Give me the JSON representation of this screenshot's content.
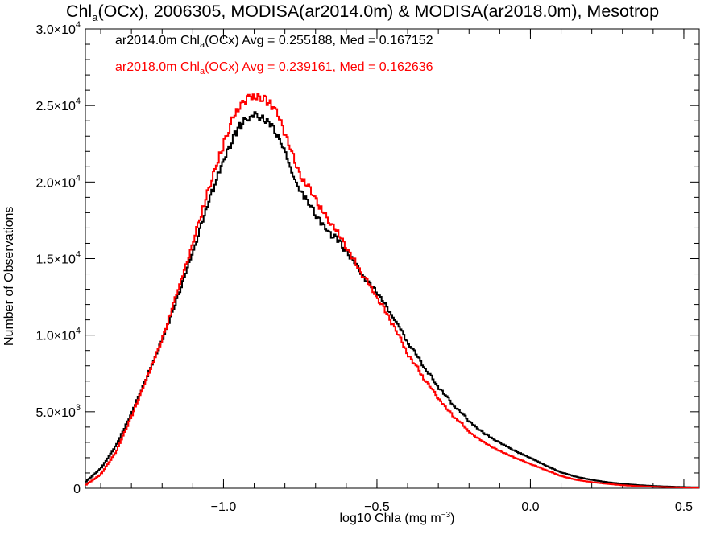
{
  "chart_data": {
    "type": "line",
    "title": {
      "prefix": "Chl",
      "sub": "a",
      "rest": "(OCx), 2006305, MODISA(ar2014.0m) & MODISA(ar2018.0m), Mesotrop"
    },
    "xlabel": {
      "text": "log10 Chla (mg m",
      "sup": "−3",
      "close": ")"
    },
    "ylabel": "Number of Observations",
    "xlim": [
      -1.45,
      0.55
    ],
    "ylim": [
      0,
      30000
    ],
    "x_ticks": [
      {
        "value": -1.0,
        "label": "−1.0"
      },
      {
        "value": -0.5,
        "label": "−0.5"
      },
      {
        "value": 0.0,
        "label": "0.0"
      },
      {
        "value": 0.5,
        "label": "0.5"
      }
    ],
    "y_ticks": [
      {
        "value": 0,
        "mant": "0",
        "exp": ""
      },
      {
        "value": 5000,
        "mant": "5.0×10",
        "exp": "3"
      },
      {
        "value": 10000,
        "mant": "1.0×10",
        "exp": "4"
      },
      {
        "value": 15000,
        "mant": "1.5×10",
        "exp": "4"
      },
      {
        "value": 20000,
        "mant": "2.0×10",
        "exp": "4"
      },
      {
        "value": 25000,
        "mant": "2.5×10",
        "exp": "4"
      },
      {
        "value": 30000,
        "mant": "3.0×10",
        "exp": "4"
      }
    ],
    "series": [
      {
        "label": {
          "pre": "ar2014.0m Chl",
          "sub": "a",
          "post": "(OCx) Avg = 0.255188, Med = 0.167152"
        },
        "color": "#000000",
        "x": [
          -1.45,
          -1.4,
          -1.35,
          -1.3,
          -1.25,
          -1.2,
          -1.15,
          -1.1,
          -1.05,
          -1.0,
          -0.97,
          -0.94,
          -0.91,
          -0.89,
          -0.87,
          -0.85,
          -0.83,
          -0.81,
          -0.79,
          -0.77,
          -0.75,
          -0.72,
          -0.7,
          -0.68,
          -0.65,
          -0.62,
          -0.6,
          -0.57,
          -0.55,
          -0.52,
          -0.5,
          -0.47,
          -0.45,
          -0.42,
          -0.4,
          -0.37,
          -0.35,
          -0.32,
          -0.3,
          -0.27,
          -0.25,
          -0.22,
          -0.2,
          -0.15,
          -0.1,
          -0.05,
          0.0,
          0.05,
          0.1,
          0.15,
          0.2,
          0.25,
          0.3,
          0.35,
          0.4,
          0.45,
          0.5,
          0.55
        ],
        "y": [
          400,
          1300,
          2800,
          4900,
          7300,
          9700,
          12500,
          15500,
          18700,
          21500,
          23000,
          24000,
          24400,
          24500,
          24200,
          23900,
          23400,
          22600,
          21500,
          20400,
          19500,
          18700,
          18000,
          17400,
          16700,
          16200,
          15500,
          14800,
          14000,
          13400,
          12800,
          12000,
          11300,
          10400,
          9500,
          8800,
          8000,
          7300,
          6600,
          6000,
          5400,
          4900,
          4400,
          3600,
          3000,
          2450,
          2000,
          1500,
          1050,
          750,
          550,
          400,
          290,
          210,
          150,
          110,
          80,
          60
        ]
      },
      {
        "label": {
          "pre": "ar2018.0m Chl",
          "sub": "a",
          "post": "(OCx) Avg = 0.239161, Med = 0.162636"
        },
        "color": "#ff0000",
        "x": [
          -1.45,
          -1.4,
          -1.35,
          -1.3,
          -1.25,
          -1.2,
          -1.15,
          -1.1,
          -1.05,
          -1.0,
          -0.97,
          -0.94,
          -0.91,
          -0.89,
          -0.87,
          -0.85,
          -0.83,
          -0.81,
          -0.79,
          -0.77,
          -0.75,
          -0.72,
          -0.7,
          -0.68,
          -0.65,
          -0.62,
          -0.6,
          -0.57,
          -0.55,
          -0.52,
          -0.5,
          -0.47,
          -0.45,
          -0.42,
          -0.4,
          -0.37,
          -0.35,
          -0.32,
          -0.3,
          -0.27,
          -0.25,
          -0.22,
          -0.2,
          -0.15,
          -0.1,
          -0.05,
          0.0,
          0.05,
          0.1,
          0.15,
          0.2,
          0.25,
          0.3,
          0.35,
          0.4,
          0.45,
          0.5,
          0.55
        ],
        "y": [
          200,
          900,
          2400,
          4700,
          7200,
          9800,
          12900,
          16100,
          19600,
          22600,
          24300,
          25300,
          25800,
          25800,
          25600,
          25400,
          24900,
          23900,
          22800,
          21700,
          20600,
          19800,
          19000,
          18300,
          17400,
          16600,
          15800,
          14900,
          14100,
          13300,
          12500,
          11600,
          10800,
          9700,
          8800,
          8000,
          7300,
          6500,
          5900,
          5200,
          4700,
          4200,
          3700,
          3000,
          2450,
          2000,
          1600,
          1200,
          800,
          550,
          400,
          290,
          200,
          140,
          100,
          70,
          50,
          40
        ]
      }
    ]
  }
}
